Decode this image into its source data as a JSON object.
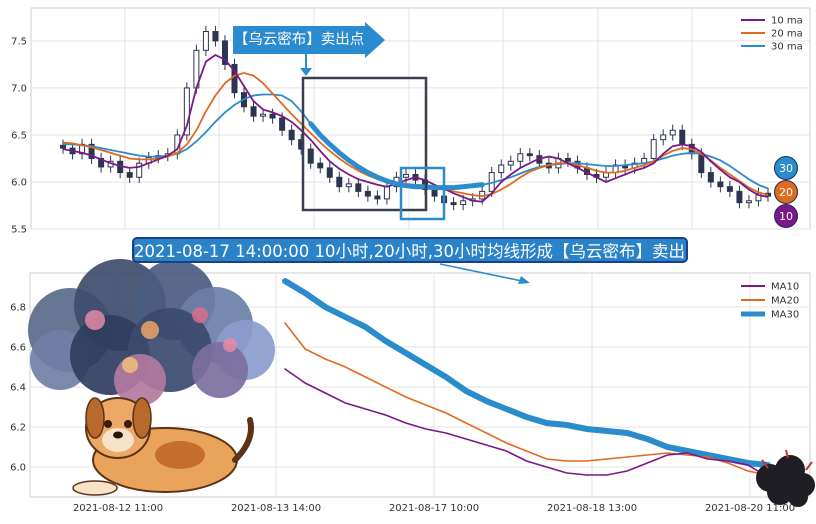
{
  "top_panel": {
    "sell_tag": "【乌云密布】卖出点",
    "badges": [
      "30",
      "20",
      "10"
    ]
  },
  "banner": "2021-08-17 14:00:00 10小时,20小时,30小时均线形成【乌云密布】卖出点",
  "colors": {
    "ma10": "#7b1889",
    "ma20": "#e06a1e",
    "ma30": "#2b8ccb",
    "candle": "#2c3550",
    "box_dark": "#3a3f4f",
    "box_blue": "#2b8ccb",
    "banner_bg": "#2a82c9"
  },
  "chart_data": [
    {
      "type": "candlestick",
      "y_ticks": [
        "5.5",
        "6.0",
        "6.5",
        "7.0",
        "7.5"
      ],
      "ylim": [
        5.5,
        7.85
      ],
      "legend": [
        "10 ma",
        "20 ma",
        "30 ma"
      ],
      "legend_position": "top-right",
      "grid": true,
      "ma10": [
        6.35,
        6.33,
        6.31,
        6.28,
        6.24,
        6.2,
        6.17,
        6.15,
        6.16,
        6.2,
        6.24,
        6.28,
        6.35,
        6.6,
        7.0,
        7.28,
        7.35,
        7.3,
        7.18,
        7.02,
        6.86,
        6.77,
        6.74,
        6.7,
        6.64,
        6.55,
        6.45,
        6.33,
        6.22,
        6.14,
        6.08,
        6.03,
        6.0,
        5.97,
        5.95,
        5.98,
        6.02,
        6.05,
        6.02,
        5.97,
        5.93,
        5.88,
        5.84,
        5.8,
        5.79,
        5.88,
        6.0,
        6.08,
        6.15,
        6.2,
        6.25,
        6.27,
        6.25,
        6.2,
        6.15,
        6.1,
        6.05,
        6.0,
        6.04,
        6.08,
        6.12,
        6.15,
        6.2,
        6.3,
        6.38,
        6.4,
        6.38,
        6.32,
        6.22,
        6.13,
        6.05,
        6.0,
        5.92,
        5.86,
        5.84
      ],
      "ma20": [
        6.42,
        6.41,
        6.39,
        6.37,
        6.34,
        6.31,
        6.28,
        6.25,
        6.24,
        6.24,
        6.25,
        6.27,
        6.31,
        6.4,
        6.55,
        6.75,
        6.92,
        7.05,
        7.13,
        7.16,
        7.13,
        7.05,
        6.94,
        6.83,
        6.72,
        6.62,
        6.52,
        6.42,
        6.33,
        6.25,
        6.18,
        6.12,
        6.07,
        6.03,
        6.0,
        5.99,
        5.98,
        5.97,
        5.96,
        5.94,
        5.92,
        5.9,
        5.88,
        5.86,
        5.85,
        5.87,
        5.92,
        5.98,
        6.05,
        6.11,
        6.15,
        6.18,
        6.2,
        6.2,
        6.18,
        6.15,
        6.12,
        6.1,
        6.1,
        6.12,
        6.15,
        6.18,
        6.22,
        6.28,
        6.33,
        6.36,
        6.35,
        6.3,
        6.23,
        6.15,
        6.08,
        6.01,
        5.94,
        5.89,
        5.86
      ],
      "ma30": [
        6.4,
        6.4,
        6.39,
        6.38,
        6.36,
        6.34,
        6.32,
        6.3,
        6.28,
        6.27,
        6.27,
        6.28,
        6.3,
        6.35,
        6.43,
        6.53,
        6.64,
        6.74,
        6.82,
        6.88,
        6.92,
        6.93,
        6.93,
        6.92,
        6.86,
        6.75,
        6.62,
        6.5,
        6.4,
        6.31,
        6.23,
        6.16,
        6.1,
        6.05,
        6.01,
        5.98,
        5.96,
        5.95,
        5.95,
        5.94,
        5.94,
        5.94,
        5.95,
        5.96,
        5.97,
        5.99,
        6.02,
        6.05,
        6.09,
        6.13,
        6.16,
        6.18,
        6.19,
        6.2,
        6.2,
        6.19,
        6.18,
        6.17,
        6.17,
        6.18,
        6.19,
        6.2,
        6.22,
        6.25,
        6.28,
        6.3,
        6.31,
        6.3,
        6.27,
        6.23,
        6.17,
        6.1,
        6.03,
        5.97,
        5.93
      ],
      "closes": [
        6.36,
        6.3,
        6.4,
        6.25,
        6.16,
        6.22,
        6.1,
        6.05,
        6.2,
        6.26,
        6.28,
        6.3,
        6.5,
        7.0,
        7.4,
        7.6,
        7.5,
        7.25,
        6.95,
        6.8,
        6.7,
        6.72,
        6.68,
        6.55,
        6.45,
        6.35,
        6.2,
        6.15,
        6.05,
        5.95,
        5.98,
        5.9,
        5.85,
        5.82,
        5.95,
        6.05,
        6.08,
        6.02,
        5.92,
        5.85,
        5.78,
        5.76,
        5.8,
        5.82,
        5.9,
        6.1,
        6.18,
        6.22,
        6.3,
        6.28,
        6.2,
        6.15,
        6.25,
        6.22,
        6.15,
        6.08,
        6.05,
        6.1,
        6.18,
        6.15,
        6.2,
        6.25,
        6.45,
        6.5,
        6.55,
        6.4,
        6.3,
        6.1,
        6.0,
        5.95,
        5.9,
        5.78,
        5.8,
        5.88,
        5.85
      ]
    },
    {
      "type": "line",
      "x_ticks": [
        "2021-08-12 11:00",
        "2021-08-13 14:00",
        "2021-08-17 10:00",
        "2021-08-18 13:00",
        "2021-08-20 11:00"
      ],
      "y_ticks": [
        "6.0",
        "6.2",
        "6.4",
        "6.6",
        "6.8"
      ],
      "ylim": [
        5.85,
        6.97
      ],
      "legend": [
        "MA10",
        "MA20",
        "MA30"
      ],
      "legend_position": "top-right",
      "grid": true,
      "series": [
        {
          "name": "MA10",
          "values": [
            6.49,
            6.42,
            6.37,
            6.32,
            6.29,
            6.26,
            6.22,
            6.19,
            6.17,
            6.14,
            6.11,
            6.08,
            6.03,
            6.0,
            5.97,
            5.96,
            5.96,
            5.98,
            6.02,
            6.06,
            6.07,
            6.04,
            6.03,
            6.01,
            5.95
          ]
        },
        {
          "name": "MA20",
          "values": [
            6.72,
            6.59,
            6.54,
            6.5,
            6.45,
            6.4,
            6.35,
            6.31,
            6.27,
            6.22,
            6.17,
            6.12,
            6.08,
            6.04,
            6.03,
            6.03,
            6.04,
            6.05,
            6.06,
            6.07,
            6.06,
            6.05,
            6.02,
            5.98,
            5.96
          ]
        },
        {
          "name": "MA30",
          "values": [
            6.93,
            6.87,
            6.8,
            6.75,
            6.7,
            6.63,
            6.57,
            6.51,
            6.45,
            6.38,
            6.33,
            6.29,
            6.25,
            6.22,
            6.21,
            6.19,
            6.18,
            6.17,
            6.14,
            6.1,
            6.08,
            6.06,
            6.04,
            6.02,
            6.01
          ]
        }
      ]
    }
  ]
}
